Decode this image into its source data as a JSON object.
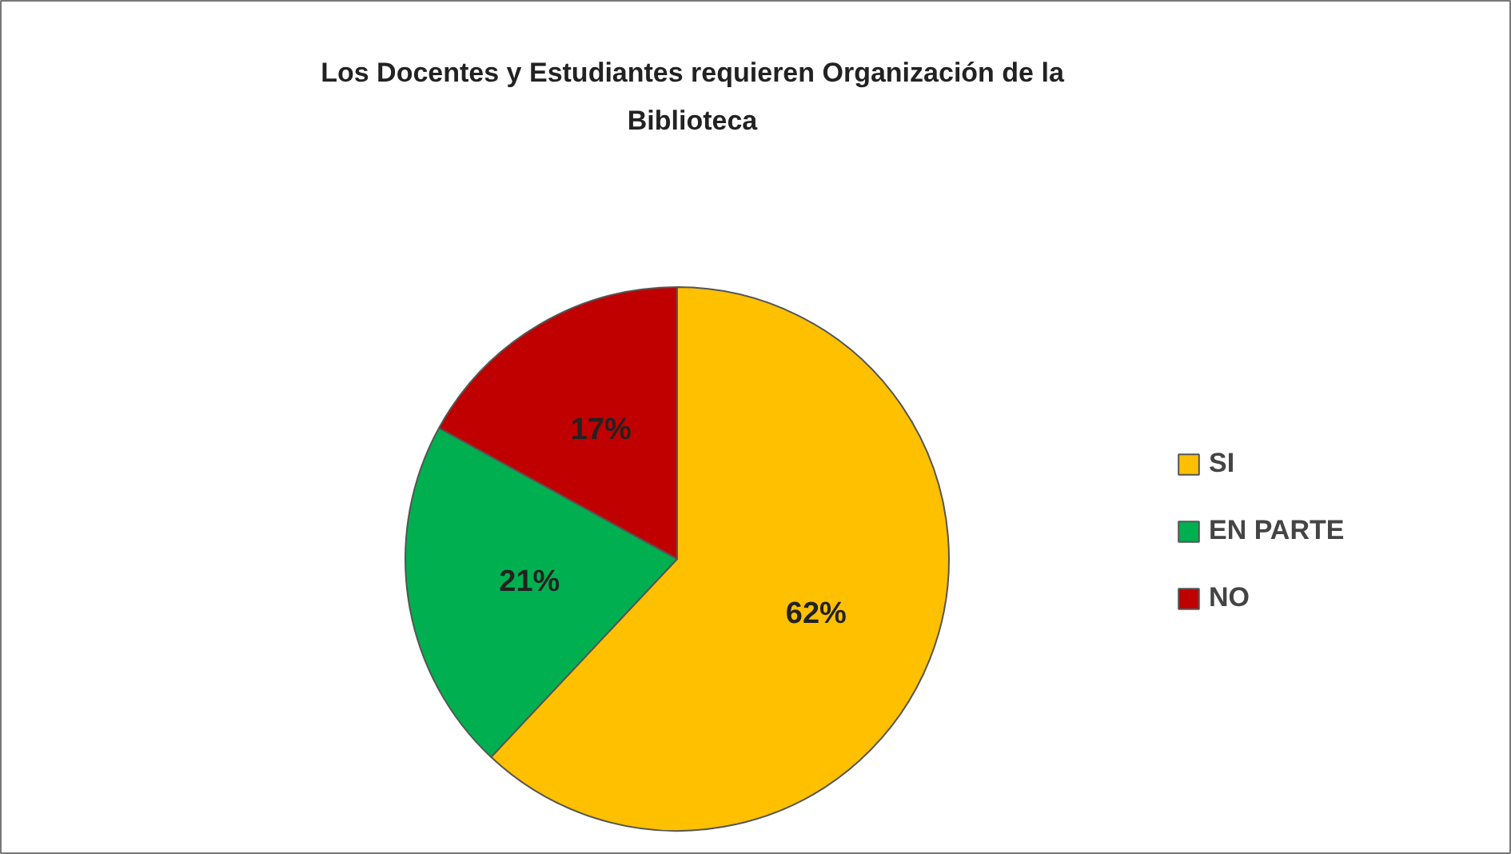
{
  "chart_data": {
    "type": "pie",
    "title": "Los Docentes y Estudiantes requieren Organización de la Biblioteca",
    "categories": [
      "SI",
      "EN PARTE",
      "NO"
    ],
    "values": [
      62,
      21,
      17
    ],
    "colors": [
      "#ffc000",
      "#00b050",
      "#c00000"
    ],
    "value_labels": [
      "62%",
      "21%",
      "17%"
    ],
    "legend": "right"
  }
}
